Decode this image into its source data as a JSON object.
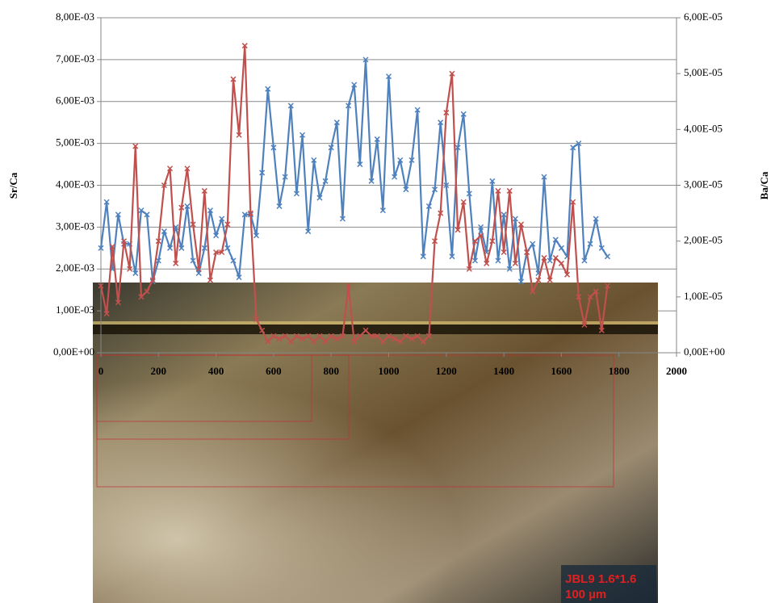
{
  "chart_data": {
    "type": "line",
    "y_label": "Sr/Ca",
    "y2_label": "Ba/Ca",
    "x": [
      0,
      20,
      40,
      60,
      80,
      100,
      120,
      140,
      160,
      180,
      200,
      220,
      240,
      260,
      280,
      300,
      320,
      340,
      360,
      380,
      400,
      420,
      440,
      460,
      480,
      500,
      520,
      540,
      560,
      580,
      600,
      620,
      640,
      660,
      680,
      700,
      720,
      740,
      760,
      780,
      800,
      820,
      840,
      860,
      880,
      900,
      920,
      940,
      960,
      980,
      1000,
      1020,
      1040,
      1060,
      1080,
      1100,
      1120,
      1140,
      1160,
      1180,
      1200,
      1220,
      1240,
      1260,
      1280,
      1300,
      1320,
      1340,
      1360,
      1380,
      1400,
      1420,
      1440,
      1460,
      1480,
      1500,
      1520,
      1540,
      1560,
      1580,
      1600,
      1620,
      1640,
      1660,
      1680,
      1700,
      1720,
      1740,
      1760
    ],
    "series": [
      {
        "color": "#4f81bd",
        "axis": "y",
        "values": [
          0.0025,
          0.0036,
          0.002,
          0.0033,
          0.0026,
          0.0026,
          0.0019,
          0.0034,
          0.0033,
          0.0017,
          0.0022,
          0.0029,
          0.0025,
          0.003,
          0.0025,
          0.0035,
          0.0022,
          0.0019,
          0.0025,
          0.0034,
          0.0028,
          0.0032,
          0.0025,
          0.0022,
          0.0018,
          0.0033,
          0.0033,
          0.0028,
          0.0043,
          0.0063,
          0.0049,
          0.0035,
          0.0042,
          0.0059,
          0.0038,
          0.0052,
          0.0029,
          0.0046,
          0.0037,
          0.0041,
          0.0049,
          0.0055,
          0.0032,
          0.0059,
          0.0064,
          0.0045,
          0.007,
          0.0041,
          0.0051,
          0.0034,
          0.0066,
          0.0042,
          0.0046,
          0.0039,
          0.0046,
          0.0058,
          0.0023,
          0.0035,
          0.0039,
          0.0055,
          0.004,
          0.0023,
          0.0049,
          0.0057,
          0.0038,
          0.0022,
          0.003,
          0.0024,
          0.0041,
          0.0022,
          0.0033,
          0.002,
          0.0032,
          0.0017,
          0.0024,
          0.0026,
          0.0019,
          0.0042,
          0.0022,
          0.0027,
          0.0025,
          0.0023,
          0.0049,
          0.005,
          0.0022,
          0.0026,
          0.0032,
          0.0025,
          0.0023
        ]
      },
      {
        "color": "#c0504d",
        "axis": "y2",
        "values": [
          1.2e-05,
          7e-06,
          1.9e-05,
          9e-06,
          2e-05,
          1.5e-05,
          3.7e-05,
          1e-05,
          1.1e-05,
          1.3e-05,
          2e-05,
          3e-05,
          3.3e-05,
          1.6e-05,
          2.6e-05,
          3.3e-05,
          2.3e-05,
          1.5e-05,
          2.9e-05,
          1.3e-05,
          1.8e-05,
          1.8e-05,
          2.3e-05,
          4.9e-05,
          3.9e-05,
          5.5e-05,
          2.5e-05,
          6e-06,
          4e-06,
          2e-06,
          3e-06,
          2.5e-06,
          3e-06,
          2e-06,
          3e-06,
          2.5e-06,
          3e-06,
          2e-06,
          3e-06,
          2e-06,
          3e-06,
          2.5e-06,
          3e-06,
          1.2e-05,
          2e-06,
          3e-06,
          4e-06,
          3e-06,
          3e-06,
          2e-06,
          3e-06,
          2.5e-06,
          2e-06,
          3e-06,
          2.5e-06,
          3e-06,
          2e-06,
          3e-06,
          2e-05,
          2.5e-05,
          4.3e-05,
          5e-05,
          2.2e-05,
          2.7e-05,
          1.5e-05,
          2e-05,
          2.1e-05,
          1.6e-05,
          2e-05,
          2.9e-05,
          1.8e-05,
          2.9e-05,
          1.6e-05,
          2.3e-05,
          1.8e-05,
          1.1e-05,
          1.3e-05,
          1.7e-05,
          1.3e-05,
          1.7e-05,
          1.6e-05,
          1.4e-05,
          2.7e-05,
          1e-05,
          5e-06,
          1e-05,
          1.1e-05,
          4e-06,
          1.2e-05
        ]
      }
    ],
    "xlim": [
      0,
      2000
    ],
    "xticks": [
      0,
      200,
      400,
      600,
      800,
      1000,
      1200,
      1400,
      1600,
      1800,
      2000
    ],
    "ylim": [
      0,
      0.008
    ],
    "yticks": [
      {
        "value": 0,
        "label": "0,00E+00"
      },
      {
        "value": 0.001,
        "label": "1,00E-03"
      },
      {
        "value": 0.002,
        "label": "2,00E-03"
      },
      {
        "value": 0.003,
        "label": "3,00E-03"
      },
      {
        "value": 0.004,
        "label": "4,00E-03"
      },
      {
        "value": 0.005,
        "label": "5,00E-03"
      },
      {
        "value": 0.006,
        "label": "6,00E-03"
      },
      {
        "value": 0.007,
        "label": "7,00E-03"
      },
      {
        "value": 0.008,
        "label": "8,00E-03"
      }
    ],
    "y2lim": [
      0,
      6e-05
    ],
    "y2ticks": [
      {
        "value": 0,
        "label": "0,00E+00"
      },
      {
        "value": 1e-05,
        "label": "1,00E-05"
      },
      {
        "value": 2e-05,
        "label": "2,00E-05"
      },
      {
        "value": 3e-05,
        "label": "3,00E-05"
      },
      {
        "value": 4e-05,
        "label": "4,00E-05"
      },
      {
        "value": 5e-05,
        "label": "5,00E-05"
      },
      {
        "value": 6e-05,
        "label": "6,00E-05"
      }
    ],
    "grid": true,
    "image_labels": [
      "JBL9 1.6*1.6",
      "100 µm"
    ]
  }
}
